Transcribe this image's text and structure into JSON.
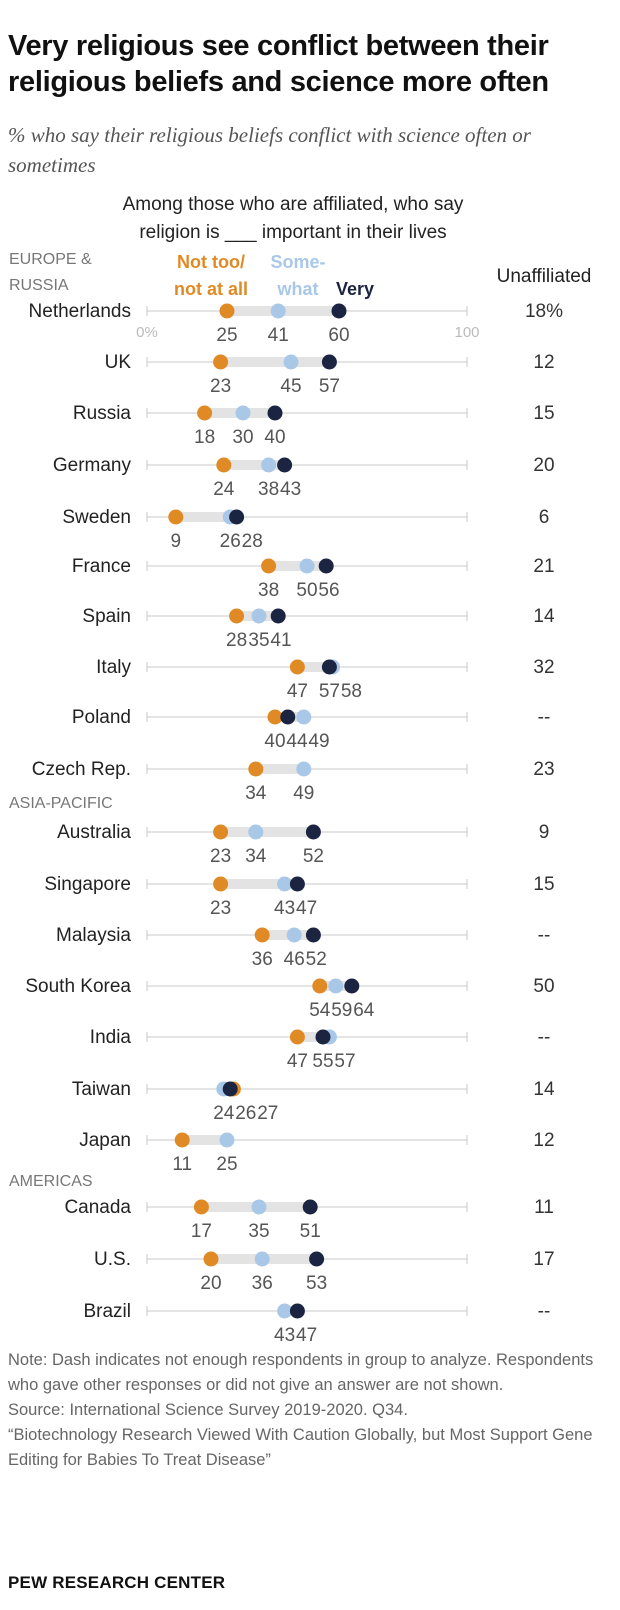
{
  "title": "Very religious see conflict between their religious beliefs and science more often",
  "subtitle": "% who say their religious beliefs conflict with science often or sometimes",
  "note": "Note: Dash indicates not enough respondents in group to analyze. Respondents who gave other responses or did not give an answer are not shown.",
  "source": "Source: International Science Survey 2019-2020. Q34.",
  "report": "“Biotechnology Research Viewed With Caution Globally, but Most Support Gene Editing for Babies To Treat Disease”",
  "footer": "PEW RESEARCH CENTER",
  "chart_data": {
    "type": "scatter",
    "header_line1": "Among those who are affiliated, who say",
    "header_line2": "religion is ___ important in their lives",
    "series": [
      {
        "key": "not_too",
        "name": "Not too/ not at all",
        "name_lines": [
          "Not too/",
          "not at all"
        ],
        "color": "#E08A26"
      },
      {
        "key": "somewhat",
        "name": "Some- what",
        "name_lines": [
          "Some-",
          "what"
        ],
        "color": "#A9C8E8"
      },
      {
        "key": "very",
        "name": "Very",
        "name_lines": [
          "Very"
        ],
        "color": "#1B2440"
      }
    ],
    "unaffiliated_header": "Unaffiliated",
    "axis": {
      "min": 0,
      "max": 100,
      "tick_labels": [
        "0%",
        "100"
      ]
    },
    "groups": [
      {
        "name": "EUROPE & RUSSIA",
        "name_lines": [
          "EUROPE &",
          "RUSSIA"
        ],
        "rows": [
          {
            "country": "Netherlands",
            "not_too": 25,
            "somewhat": 41,
            "very": 60,
            "unaffiliated": "18%"
          },
          {
            "country": "UK",
            "not_too": 23,
            "somewhat": 45,
            "very": 57,
            "unaffiliated": "12"
          },
          {
            "country": "Russia",
            "not_too": 18,
            "somewhat": 30,
            "very": 40,
            "unaffiliated": "15"
          },
          {
            "country": "Germany",
            "not_too": 24,
            "somewhat": 38,
            "very": 43,
            "unaffiliated": "20"
          },
          {
            "country": "Sweden",
            "not_too": 9,
            "somewhat": 26,
            "very": 28,
            "unaffiliated": "6"
          },
          {
            "country": "France",
            "not_too": 38,
            "somewhat": 50,
            "very": 56,
            "unaffiliated": "21"
          },
          {
            "country": "Spain",
            "not_too": 28,
            "somewhat": 35,
            "very": 41,
            "unaffiliated": "14"
          },
          {
            "country": "Italy",
            "not_too": 47,
            "somewhat": 58,
            "very": 57,
            "unaffiliated": "32"
          },
          {
            "country": "Poland",
            "not_too": 40,
            "somewhat": 49,
            "very": 44,
            "unaffiliated": "--"
          },
          {
            "country": "Czech Rep.",
            "not_too": 34,
            "somewhat": 49,
            "very": null,
            "unaffiliated": "23"
          }
        ]
      },
      {
        "name": "ASIA-PACIFIC",
        "name_lines": [
          "ASIA-PACIFIC"
        ],
        "rows": [
          {
            "country": "Australia",
            "not_too": 23,
            "somewhat": 34,
            "very": 52,
            "unaffiliated": "9"
          },
          {
            "country": "Singapore",
            "not_too": 23,
            "somewhat": 43,
            "very": 47,
            "unaffiliated": "15"
          },
          {
            "country": "Malaysia",
            "not_too": 36,
            "somewhat": 46,
            "very": 52,
            "unaffiliated": "--"
          },
          {
            "country": "South Korea",
            "not_too": 54,
            "somewhat": 59,
            "very": 64,
            "unaffiliated": "50"
          },
          {
            "country": "India",
            "not_too": 47,
            "somewhat": 57,
            "very": 55,
            "unaffiliated": "--"
          },
          {
            "country": "Taiwan",
            "not_too": 27,
            "somewhat": 24,
            "very": 26,
            "unaffiliated": "14"
          },
          {
            "country": "Japan",
            "not_too": 11,
            "somewhat": 25,
            "very": null,
            "unaffiliated": "12"
          }
        ]
      },
      {
        "name": "AMERICAS",
        "name_lines": [
          "AMERICAS"
        ],
        "rows": [
          {
            "country": "Canada",
            "not_too": 17,
            "somewhat": 35,
            "very": 51,
            "unaffiliated": "11"
          },
          {
            "country": "U.S.",
            "not_too": 20,
            "somewhat": 36,
            "very": 53,
            "unaffiliated": "17"
          },
          {
            "country": "Brazil",
            "not_too": null,
            "somewhat": 43,
            "very": 47,
            "unaffiliated": "--"
          }
        ]
      }
    ]
  }
}
